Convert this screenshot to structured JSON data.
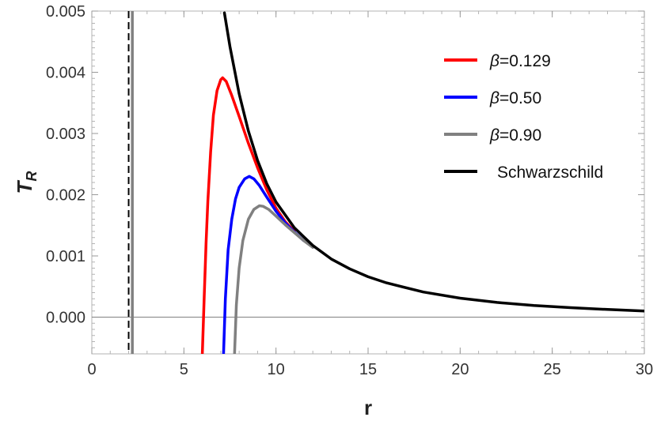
{
  "chart_data": {
    "type": "line",
    "title": "",
    "xlabel": "r",
    "ylabel_main": "T",
    "ylabel_sub": "R",
    "xlim": [
      0,
      30
    ],
    "ylim": [
      -0.0006,
      0.005
    ],
    "xticks": [
      0,
      5,
      10,
      15,
      20,
      25,
      30
    ],
    "xtick_labels": [
      "0",
      "5",
      "10",
      "15",
      "20",
      "25",
      "30"
    ],
    "yticks": [
      0,
      0.001,
      0.002,
      0.003,
      0.004,
      0.005
    ],
    "ytick_labels": [
      "0.000",
      "0.001",
      "0.002",
      "0.003",
      "0.004",
      "0.005"
    ],
    "grid": false,
    "legend_position": "top-right",
    "series": [
      {
        "name": "β=0.129",
        "legend_symbol": "β",
        "legend_value": "=0.129",
        "color": "#ff0000",
        "x": [
          6.0,
          6.1,
          6.2,
          6.3,
          6.45,
          6.6,
          6.8,
          7.0,
          7.1,
          7.3,
          7.6,
          8.0,
          8.5,
          9.0,
          9.5,
          10.0,
          10.5,
          11.0
        ],
        "y": [
          -0.0006,
          0.0003,
          0.0012,
          0.0019,
          0.0027,
          0.0033,
          0.0037,
          0.00388,
          0.00391,
          0.00385,
          0.00362,
          0.00328,
          0.00284,
          0.00244,
          0.00208,
          0.00178,
          0.00156,
          0.0014
        ]
      },
      {
        "name": "β=0.50",
        "legend_symbol": "β",
        "legend_value": "=0.50",
        "color": "#0000ff",
        "x": [
          7.15,
          7.25,
          7.4,
          7.6,
          7.8,
          8.0,
          8.3,
          8.55,
          8.8,
          9.1,
          9.5,
          10.0,
          10.5,
          11.0,
          11.5
        ],
        "y": [
          -0.0006,
          0.0003,
          0.0011,
          0.0016,
          0.00193,
          0.00212,
          0.00226,
          0.0023,
          0.00226,
          0.00215,
          0.00196,
          0.00173,
          0.00154,
          0.00139,
          0.00125
        ]
      },
      {
        "name": "β=0.90",
        "legend_symbol": "β",
        "legend_value": "=0.90",
        "color": "#808080",
        "x": [
          7.75,
          7.85,
          8.0,
          8.2,
          8.5,
          8.8,
          9.1,
          9.3,
          9.6,
          10.0,
          10.5,
          11.0,
          11.5,
          12.0
        ],
        "y": [
          -0.0006,
          0.0002,
          0.0008,
          0.00125,
          0.0016,
          0.00176,
          0.00182,
          0.00181,
          0.00176,
          0.00165,
          0.00151,
          0.00138,
          0.00125,
          0.00114
        ]
      },
      {
        "name": "Schwarzschild",
        "legend_symbol": "",
        "legend_value": "Schwarzschild",
        "color": "#000000",
        "x": [
          7.2,
          7.5,
          8.0,
          8.5,
          9.0,
          9.5,
          10.0,
          11.0,
          12.0,
          13.0,
          14.0,
          15.0,
          16.0,
          18.0,
          20.0,
          22.0,
          24.0,
          26.0,
          28.0,
          30.0
        ],
        "y": [
          0.00497,
          0.00442,
          0.00365,
          0.00304,
          0.00256,
          0.00218,
          0.00188,
          0.00146,
          0.00117,
          0.00095,
          0.00079,
          0.00066,
          0.00056,
          0.00041,
          0.00031,
          0.00024,
          0.00019,
          0.000155,
          0.000125,
          0.0001
        ]
      }
    ],
    "reference_lines": [
      {
        "x": 2.0,
        "style": "dashed",
        "color": "#000000"
      },
      {
        "x": 2.2,
        "style": "solid",
        "color": "#808080"
      }
    ],
    "zero_line": {
      "y": 0,
      "color": "#808080"
    }
  }
}
